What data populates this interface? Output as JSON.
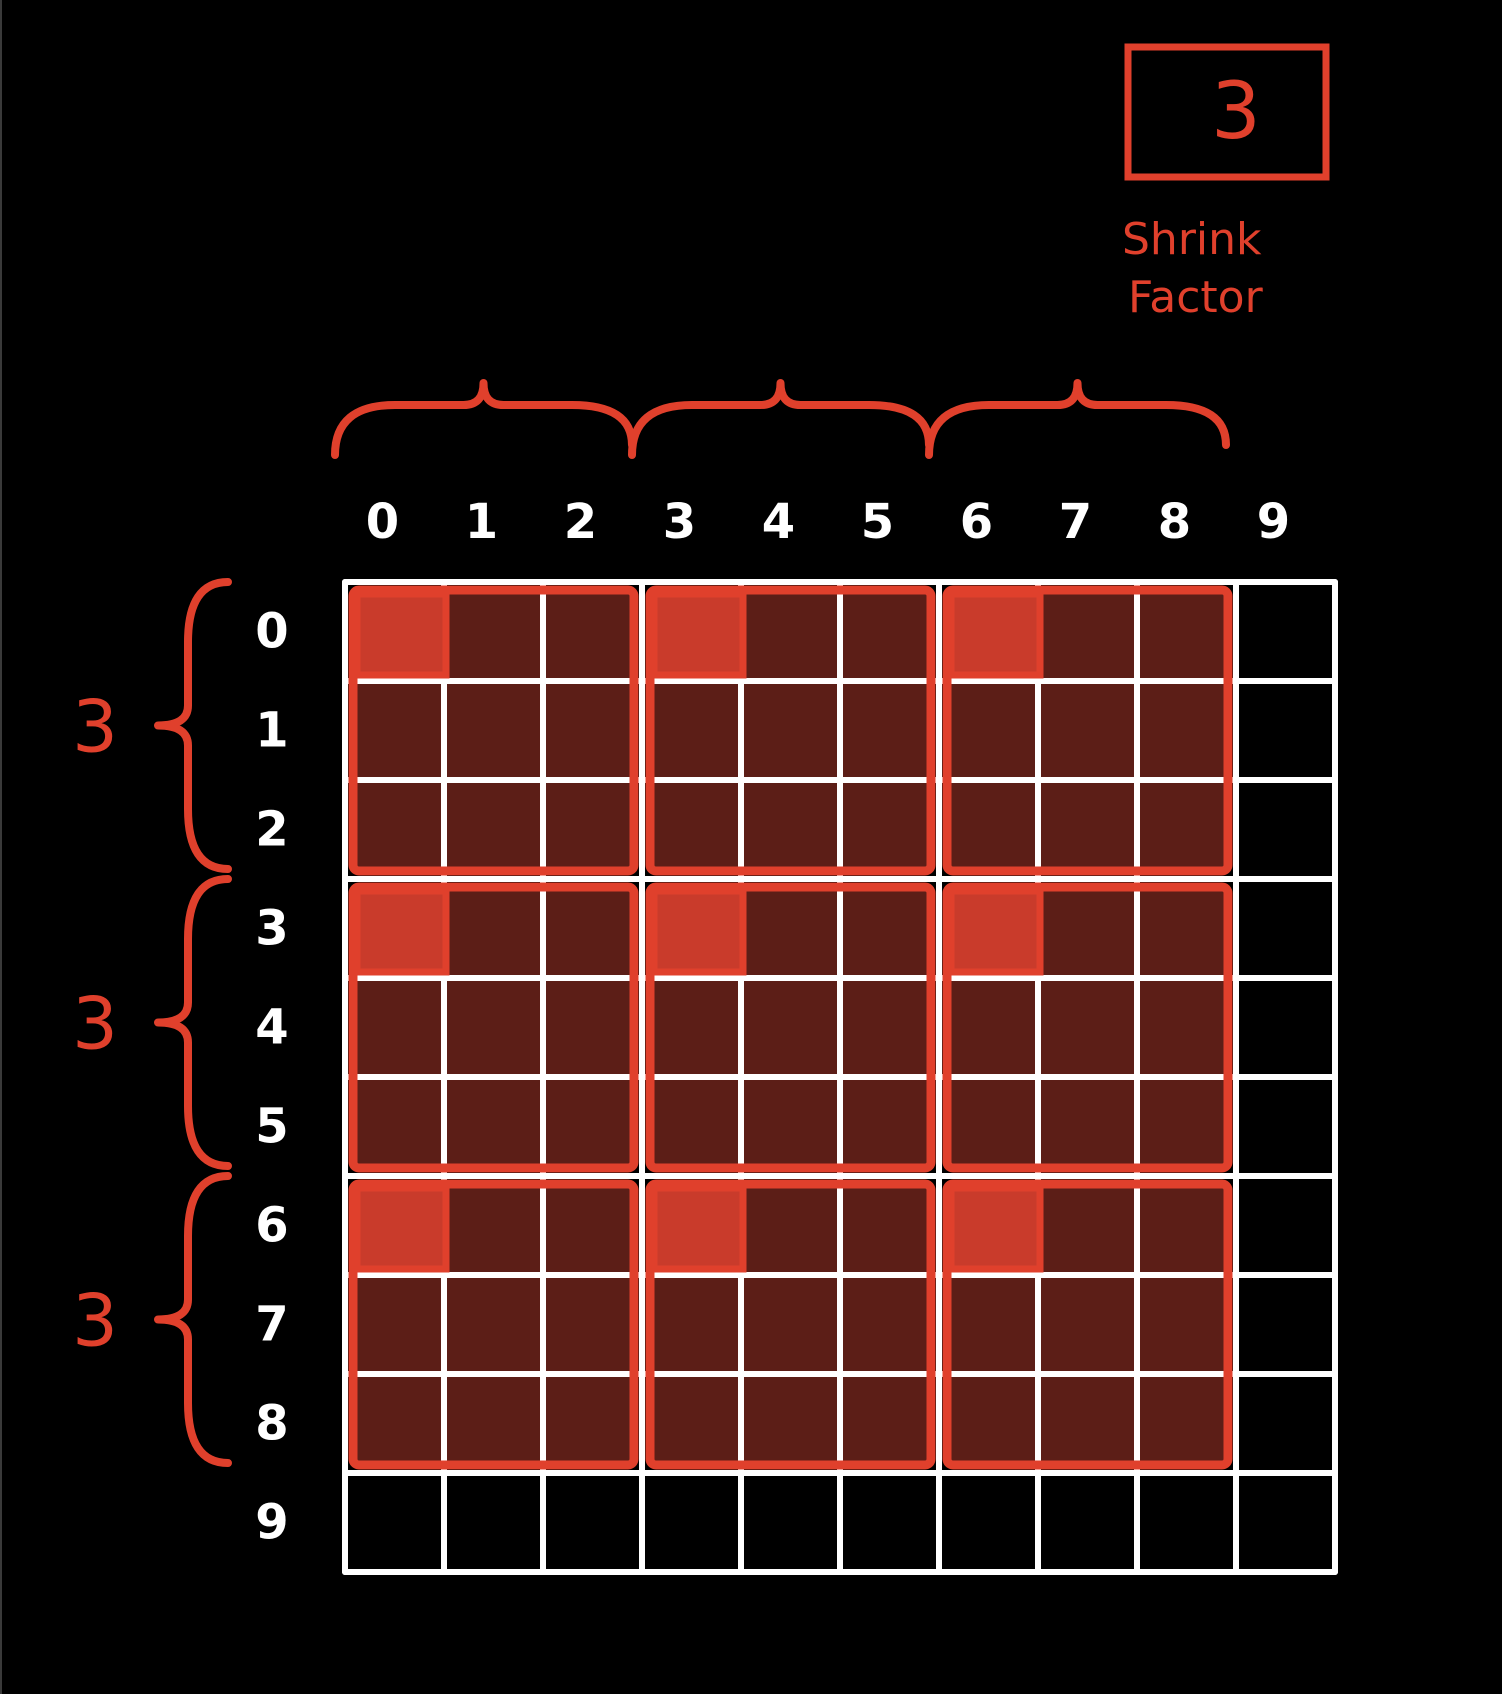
{
  "shrink_factor": {
    "value": "3",
    "label_line1": "Shrink",
    "label_line2": "Factor"
  },
  "grid": {
    "size": 10,
    "column_labels": [
      "0",
      "1",
      "2",
      "3",
      "4",
      "5",
      "6",
      "7",
      "8",
      "9"
    ],
    "row_labels": [
      "0",
      "1",
      "2",
      "3",
      "4",
      "5",
      "6",
      "7",
      "8",
      "9"
    ],
    "block_size": 3,
    "blocks_per_axis": 3
  },
  "row_group_labels": [
    "3",
    "3",
    "3"
  ],
  "colors": {
    "background": "#000000",
    "grid_line": "#ffffff",
    "accent": "#e0402c",
    "block_fill": "#5c1e17",
    "origin_fill": "#c93b2b"
  }
}
